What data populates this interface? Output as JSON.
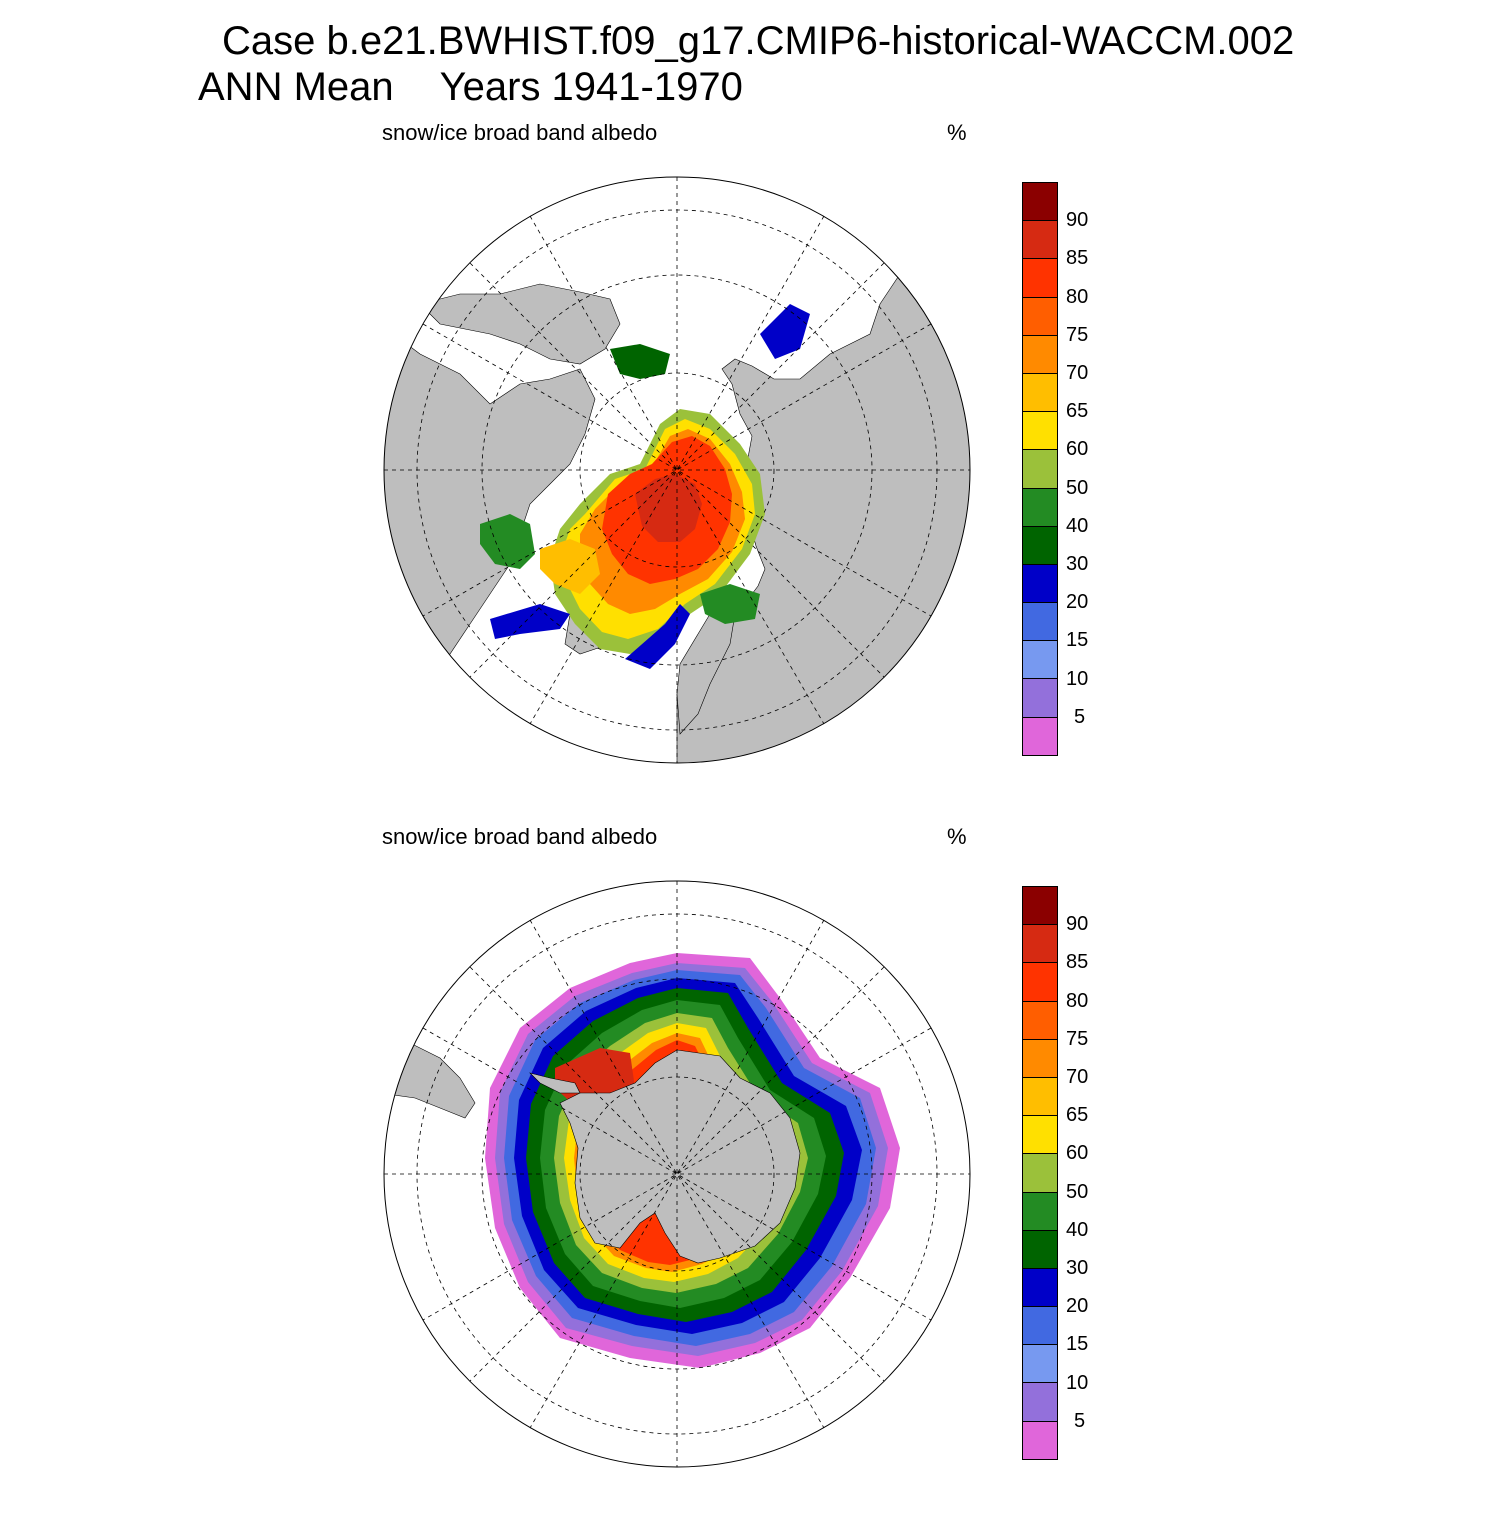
{
  "title": {
    "line1": "Case b.e21.BWHIST.f09_g17.CMIP6-historical-WACCM.002",
    "line2_left": "ANN Mean",
    "line2_right": "Years 1941-1970"
  },
  "panels": [
    {
      "id": "north",
      "variable": "snow/ice broad band albedo",
      "units": "%"
    },
    {
      "id": "south",
      "variable": "snow/ice broad band albedo",
      "units": "%"
    }
  ],
  "colorbar": {
    "levels": [
      "90",
      "85",
      "80",
      "75",
      "70",
      "65",
      "60",
      "50",
      "40",
      "30",
      "20",
      "15",
      "10",
      "5"
    ],
    "colors_top_to_bottom": [
      "#8b0000",
      "#d62a12",
      "#ff3300",
      "#ff5e00",
      "#ff8a00",
      "#ffbe00",
      "#ffe000",
      "#9bc13a",
      "#238b23",
      "#006400",
      "#0000c8",
      "#4169e1",
      "#7799f0",
      "#9370db",
      "#e066da"
    ],
    "land_color": "#bebebe"
  }
}
